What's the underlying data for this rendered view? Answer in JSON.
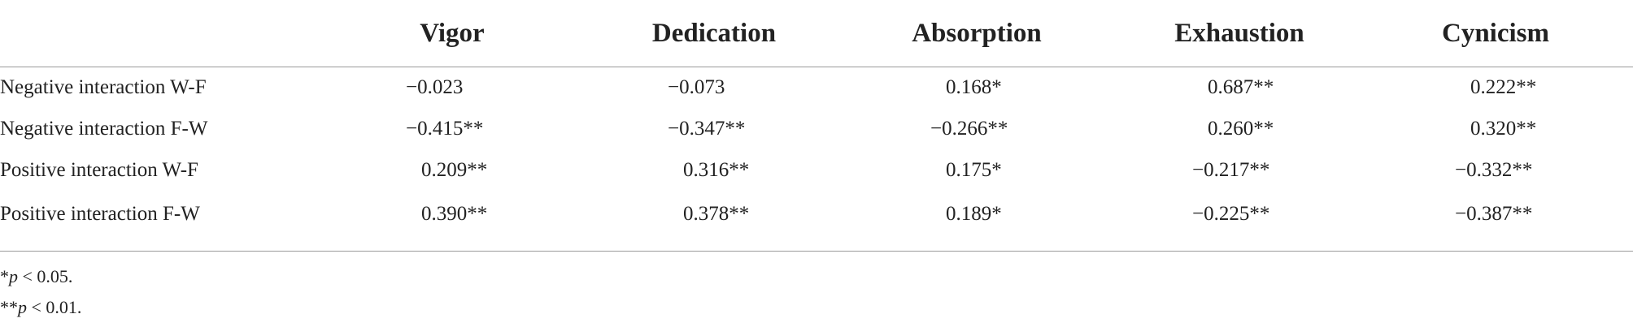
{
  "table": {
    "header": [
      "Vigor",
      "Dedication",
      "Absorption",
      "Exhaustion",
      "Cynicism"
    ],
    "rows": [
      [
        "Negative interaction W-F",
        "−0.023",
        "−0.073",
        "0.168*",
        "0.687**",
        "0.222**"
      ],
      [
        "Negative interaction F-W",
        "−0.415**",
        "−0.347**",
        "−0.266**",
        "0.260**",
        "0.320**"
      ],
      [
        "Positive interaction W-F",
        "0.209**",
        "0.316**",
        "0.175*",
        "−0.217**",
        "−0.332**"
      ],
      [
        "Positive interaction F-W",
        "0.390**",
        "0.378**",
        "0.189*",
        "−0.225**",
        "−0.387**"
      ]
    ]
  },
  "footnotes": [
    {
      "marker": "*",
      "symbol": "p",
      "text": "< 0.05."
    },
    {
      "marker": "**",
      "symbol": "p",
      "text": "< 0.01."
    }
  ]
}
